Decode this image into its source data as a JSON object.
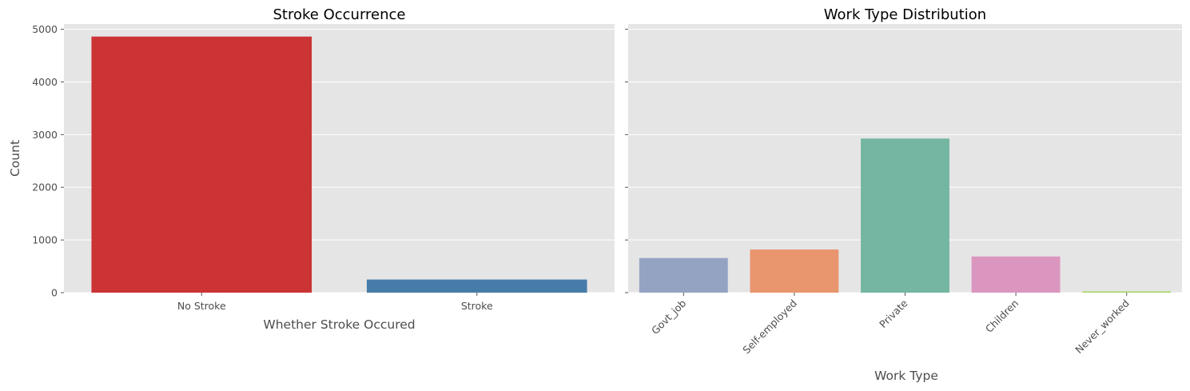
{
  "chart_data": [
    {
      "type": "bar",
      "title": "Stroke Occurrence",
      "xlabel": "Whether Stroke Occured",
      "ylabel": "Count",
      "categories": [
        "No Stroke",
        "Stroke"
      ],
      "values": [
        4861,
        249
      ],
      "colors": [
        "#cb3335",
        "#477ca8"
      ],
      "ylim": [
        0,
        5100
      ],
      "yticks": [
        0,
        1000,
        2000,
        3000,
        4000,
        5000
      ],
      "grid": true,
      "background": "#e5e5e5"
    },
    {
      "type": "bar",
      "title": "Work Type Distribution",
      "xlabel": "Work Type",
      "ylabel": "",
      "categories": [
        "Govt_job",
        "Self-employed",
        "Private",
        "Children",
        "Never_worked"
      ],
      "values": [
        657,
        819,
        2925,
        687,
        22
      ],
      "colors": [
        "#95a3c3",
        "#e9966f",
        "#74b6a2",
        "#db96c0",
        "#a6d457"
      ],
      "ylim": [
        0,
        5100
      ],
      "yticks": [
        0,
        1000,
        2000,
        3000,
        4000,
        5000
      ],
      "ytick_labels_shown": false,
      "xtick_rotation": 45,
      "grid": true,
      "background": "#e5e5e5"
    }
  ]
}
